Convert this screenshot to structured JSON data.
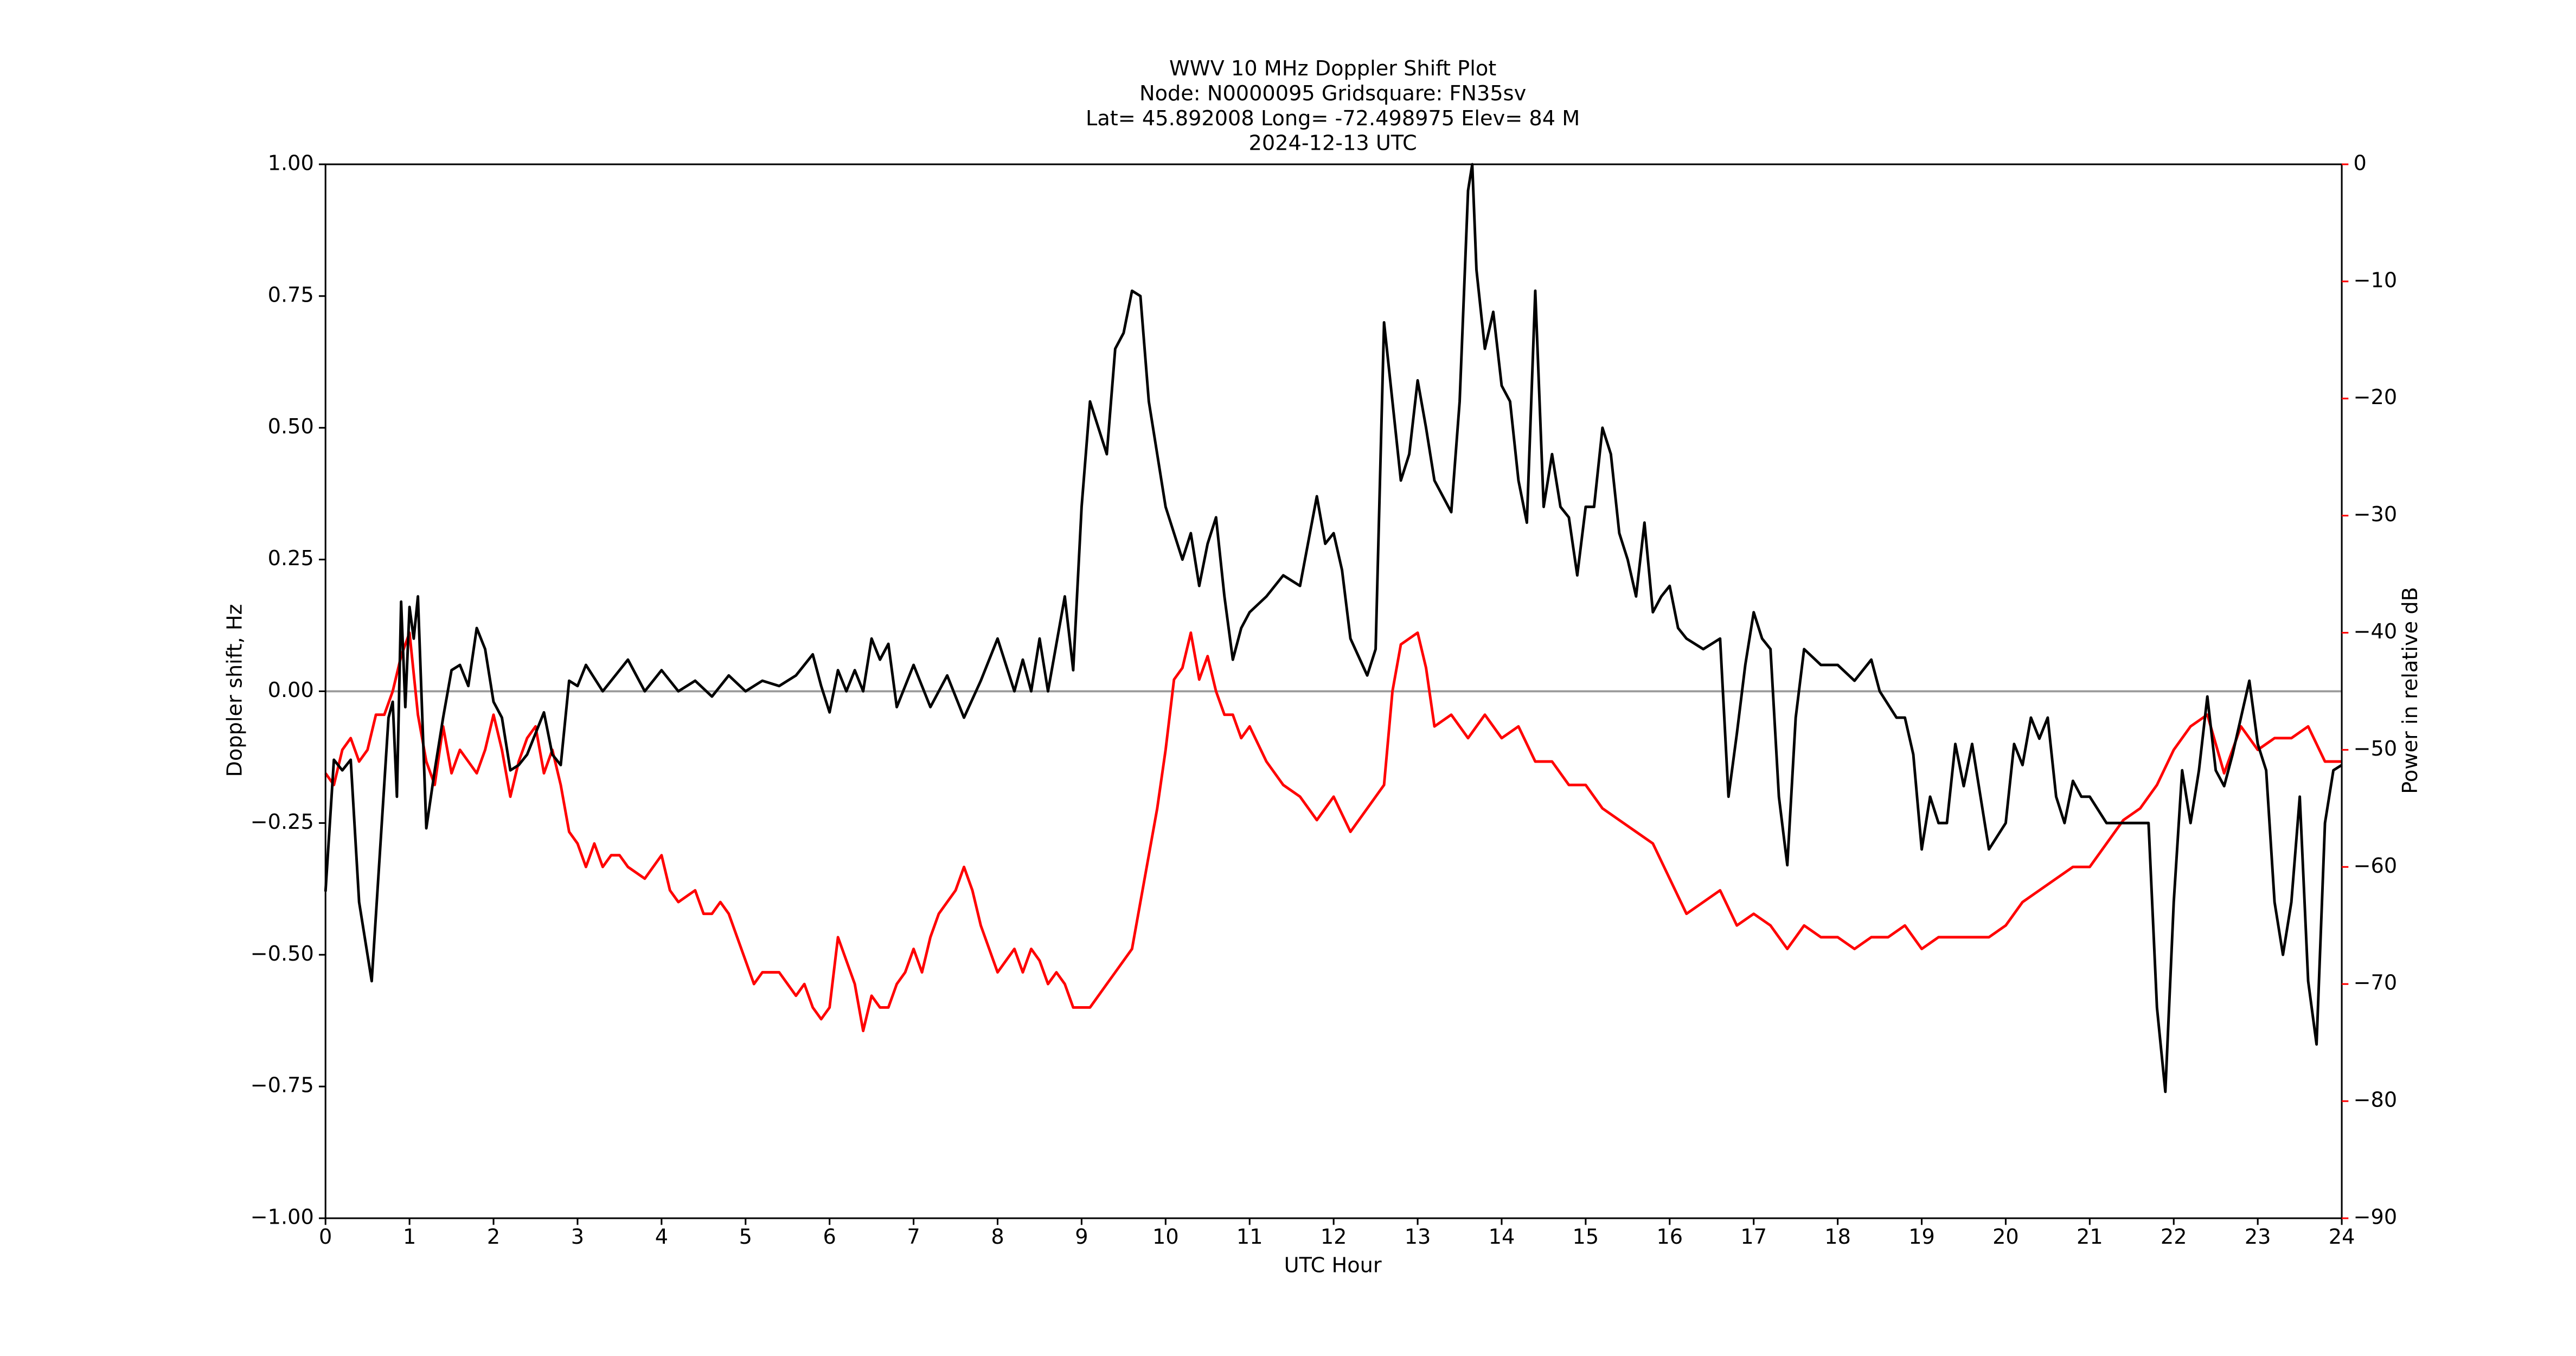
{
  "chart_data": {
    "type": "line",
    "title": [
      "WWV 10 MHz Doppler Shift Plot",
      "Node:  N0000095     Gridsquare:  FN35sv",
      "Lat= 45.892008    Long= -72.498975    Elev= 84 M",
      "2024-12-13  UTC"
    ],
    "x_label": "UTC Hour",
    "y_label": "Doppler shift, Hz",
    "y2_label": "Power in relative dB",
    "y2_color": "#ff0000",
    "xlim": [
      0,
      24
    ],
    "xticks": [
      0,
      1,
      2,
      3,
      4,
      5,
      6,
      7,
      8,
      9,
      10,
      11,
      12,
      13,
      14,
      15,
      16,
      17,
      18,
      19,
      20,
      21,
      22,
      23,
      24
    ],
    "ylim": [
      -1,
      1
    ],
    "yticks": [
      {
        "value": -1,
        "label": "−1.00"
      },
      {
        "value": -0.75,
        "label": "−0.75"
      },
      {
        "value": -0.5,
        "label": "−0.50"
      },
      {
        "value": -0.25,
        "label": "−0.25"
      },
      {
        "value": 0,
        "label": "0.00"
      },
      {
        "value": 0.25,
        "label": "0.25"
      },
      {
        "value": 0.5,
        "label": "0.50"
      },
      {
        "value": 0.75,
        "label": "0.75"
      },
      {
        "value": 1,
        "label": "1.00"
      }
    ],
    "y2lim": [
      -90,
      0
    ],
    "y2ticks": [
      {
        "value": -90,
        "label": "−90"
      },
      {
        "value": -80,
        "label": "−80"
      },
      {
        "value": -70,
        "label": "−70"
      },
      {
        "value": -60,
        "label": "−60"
      },
      {
        "value": -50,
        "label": "−50"
      },
      {
        "value": -40,
        "label": "−40"
      },
      {
        "value": -30,
        "label": "−30"
      },
      {
        "value": -20,
        "label": "−20"
      },
      {
        "value": -10,
        "label": "−10"
      },
      0
    ],
    "axhline": {
      "value": 0,
      "color": "#999999"
    },
    "series": [
      {
        "color": "#000000",
        "x": [
          0,
          0.1,
          0.2,
          0.3,
          0.4,
          0.55,
          0.65,
          0.75,
          0.8,
          0.85,
          0.9,
          0.95,
          1,
          1.05,
          1.1,
          1.2,
          1.3,
          1.4,
          1.5,
          1.6,
          1.7,
          1.8,
          1.9,
          2,
          2.1,
          2.2,
          2.3,
          2.4,
          2.5,
          2.6,
          2.7,
          2.8,
          2.9,
          3,
          3.1,
          3.3,
          3.5,
          3.6,
          3.8,
          4,
          4.2,
          4.4,
          4.6,
          4.8,
          5,
          5.2,
          5.4,
          5.6,
          5.8,
          5.9,
          6,
          6.1,
          6.2,
          6.3,
          6.4,
          6.5,
          6.6,
          6.7,
          6.8,
          7,
          7.2,
          7.4,
          7.6,
          7.8,
          8,
          8.1,
          8.2,
          8.3,
          8.4,
          8.5,
          8.6,
          8.8,
          8.9,
          9,
          9.1,
          9.2,
          9.3,
          9.4,
          9.5,
          9.6,
          9.7,
          9.8,
          9.9,
          10,
          10.1,
          10.2,
          10.3,
          10.4,
          10.5,
          10.6,
          10.7,
          10.8,
          10.9,
          11,
          11.2,
          11.4,
          11.6,
          11.8,
          11.9,
          12,
          12.1,
          12.2,
          12.4,
          12.5,
          12.6,
          12.7,
          12.8,
          12.9,
          13,
          13.1,
          13.2,
          13.4,
          13.5,
          13.6,
          13.65,
          13.7,
          13.8,
          13.9,
          14,
          14.1,
          14.2,
          14.3,
          14.4,
          14.5,
          14.6,
          14.7,
          14.8,
          14.9,
          15,
          15.1,
          15.2,
          15.3,
          15.4,
          15.5,
          15.6,
          15.7,
          15.8,
          15.9,
          16,
          16.1,
          16.2,
          16.4,
          16.6,
          16.7,
          16.8,
          16.9,
          17,
          17.1,
          17.2,
          17.3,
          17.4,
          17.5,
          17.6,
          17.8,
          18,
          18.2,
          18.4,
          18.5,
          18.7,
          18.8,
          18.9,
          19,
          19.1,
          19.2,
          19.3,
          19.4,
          19.5,
          19.6,
          19.7,
          19.8,
          20,
          20.1,
          20.2,
          20.3,
          20.4,
          20.5,
          20.6,
          20.7,
          20.8,
          20.9,
          21,
          21.2,
          21.4,
          21.6,
          21.7,
          21.8,
          21.9,
          22,
          22.1,
          22.2,
          22.3,
          22.4,
          22.5,
          22.6,
          22.7,
          22.8,
          22.9,
          23,
          23.1,
          23.2,
          23.3,
          23.4,
          23.5,
          23.6,
          23.7,
          23.8,
          23.9,
          24
        ],
        "values": [
          -0.38,
          -0.13,
          -0.15,
          -0.13,
          -0.4,
          -0.55,
          -0.3,
          -0.05,
          -0.02,
          -0.2,
          0.17,
          -0.03,
          0.16,
          0.1,
          0.18,
          -0.26,
          -0.15,
          -0.05,
          0.04,
          0.05,
          0.01,
          0.12,
          0.08,
          -0.02,
          -0.05,
          -0.15,
          -0.14,
          -0.12,
          -0.08,
          -0.04,
          -0.12,
          -0.14,
          0.02,
          0.01,
          0.05,
          0,
          0.04,
          0.06,
          0,
          0.04,
          0,
          0.02,
          -0.01,
          0.03,
          0,
          0.02,
          0.01,
          0.03,
          0.07,
          0.01,
          -0.04,
          0.04,
          0,
          0.04,
          0,
          0.1,
          0.06,
          0.09,
          -0.03,
          0.05,
          -0.03,
          0.03,
          -0.05,
          0.02,
          0.1,
          0.05,
          0,
          0.06,
          0,
          0.1,
          0,
          0.18,
          0.04,
          0.35,
          0.55,
          0.5,
          0.45,
          0.65,
          0.68,
          0.76,
          0.75,
          0.55,
          0.45,
          0.35,
          0.3,
          0.25,
          0.3,
          0.2,
          0.28,
          0.33,
          0.18,
          0.06,
          0.12,
          0.15,
          0.18,
          0.22,
          0.2,
          0.37,
          0.28,
          0.3,
          0.23,
          0.1,
          0.03,
          0.08,
          0.7,
          0.55,
          0.4,
          0.45,
          0.59,
          0.5,
          0.4,
          0.34,
          0.55,
          0.95,
          1,
          0.8,
          0.65,
          0.72,
          0.58,
          0.55,
          0.4,
          0.32,
          0.76,
          0.35,
          0.45,
          0.35,
          0.33,
          0.22,
          0.35,
          0.35,
          0.5,
          0.45,
          0.3,
          0.25,
          0.18,
          0.32,
          0.15,
          0.18,
          0.2,
          0.12,
          0.1,
          0.08,
          0.1,
          -0.2,
          -0.08,
          0.05,
          0.15,
          0.1,
          0.08,
          -0.2,
          -0.33,
          -0.05,
          0.08,
          0.05,
          0.05,
          0.02,
          0.06,
          0,
          -0.05,
          -0.05,
          -0.12,
          -0.3,
          -0.2,
          -0.25,
          -0.25,
          -0.1,
          -0.18,
          -0.1,
          -0.2,
          -0.3,
          -0.25,
          -0.1,
          -0.14,
          -0.05,
          -0.09,
          -0.05,
          -0.2,
          -0.25,
          -0.17,
          -0.2,
          -0.2,
          -0.25,
          -0.25,
          -0.25,
          -0.25,
          -0.6,
          -0.76,
          -0.4,
          -0.15,
          -0.25,
          -0.15,
          -0.01,
          -0.15,
          -0.18,
          -0.12,
          -0.05,
          0.02,
          -0.1,
          -0.15,
          -0.4,
          -0.5,
          -0.4,
          -0.2,
          -0.55,
          -0.67,
          -0.25,
          -0.15,
          -0.14
        ]
      },
      {
        "color": "#ff0000",
        "axis": "y2",
        "x": [
          0,
          0.1,
          0.2,
          0.3,
          0.4,
          0.5,
          0.6,
          0.7,
          0.8,
          0.9,
          1,
          1.1,
          1.2,
          1.3,
          1.4,
          1.5,
          1.6,
          1.7,
          1.8,
          1.9,
          2,
          2.1,
          2.2,
          2.3,
          2.4,
          2.5,
          2.6,
          2.7,
          2.8,
          2.9,
          3,
          3.1,
          3.2,
          3.3,
          3.4,
          3.5,
          3.6,
          3.8,
          4,
          4.1,
          4.2,
          4.4,
          4.5,
          4.6,
          4.7,
          4.8,
          4.9,
          5,
          5.1,
          5.2,
          5.4,
          5.5,
          5.6,
          5.7,
          5.8,
          5.9,
          6,
          6.1,
          6.2,
          6.3,
          6.4,
          6.5,
          6.6,
          6.7,
          6.8,
          6.9,
          7,
          7.1,
          7.2,
          7.3,
          7.4,
          7.5,
          7.6,
          7.7,
          7.8,
          7.9,
          8,
          8.1,
          8.2,
          8.3,
          8.4,
          8.5,
          8.6,
          8.7,
          8.8,
          8.9,
          9,
          9.1,
          9.2,
          9.3,
          9.4,
          9.5,
          9.6,
          9.7,
          9.8,
          9.9,
          10,
          10.1,
          10.2,
          10.3,
          10.4,
          10.5,
          10.6,
          10.7,
          10.8,
          10.9,
          11,
          11.2,
          11.4,
          11.6,
          11.8,
          12,
          12.2,
          12.4,
          12.6,
          12.7,
          12.8,
          13,
          13.1,
          13.2,
          13.4,
          13.6,
          13.8,
          14,
          14.2,
          14.4,
          14.6,
          14.8,
          15,
          15.2,
          15.4,
          15.6,
          15.8,
          16,
          16.2,
          16.4,
          16.6,
          16.8,
          17,
          17.2,
          17.4,
          17.6,
          17.8,
          18,
          18.2,
          18.4,
          18.6,
          18.8,
          19,
          19.2,
          19.4,
          19.6,
          19.8,
          20,
          20.2,
          20.4,
          20.6,
          20.8,
          21,
          21.2,
          21.4,
          21.6,
          21.8,
          22,
          22.2,
          22.4,
          22.6,
          22.8,
          23,
          23.2,
          23.4,
          23.6,
          23.8,
          24
        ],
        "values": [
          -52,
          -53,
          -50,
          -49,
          -51,
          -50,
          -47,
          -47,
          -45,
          -42,
          -40,
          -47,
          -51,
          -53,
          -48,
          -52,
          -50,
          -51,
          -52,
          -50,
          -47,
          -50,
          -54,
          -51,
          -49,
          -48,
          -52,
          -50,
          -53,
          -57,
          -58,
          -60,
          -58,
          -60,
          -59,
          -59,
          -60,
          -61,
          -59,
          -62,
          -63,
          -62,
          -64,
          -64,
          -63,
          -64,
          -66,
          -68,
          -70,
          -69,
          -69,
          -70,
          -71,
          -70,
          -72,
          -73,
          -72,
          -66,
          -68,
          -70,
          -74,
          -71,
          -72,
          -72,
          -70,
          -69,
          -67,
          -69,
          -66,
          -64,
          -63,
          -62,
          -60,
          -62,
          -65,
          -67,
          -69,
          -68,
          -67,
          -69,
          -67,
          -68,
          -70,
          -69,
          -70,
          -72,
          -72,
          -72,
          -71,
          -70,
          -69,
          -68,
          -67,
          -63,
          -59,
          -55,
          -50,
          -44,
          -43,
          -40,
          -44,
          -42,
          -45,
          -47,
          -47,
          -49,
          -48,
          -51,
          -53,
          -54,
          -56,
          -54,
          -57,
          -55,
          -53,
          -45,
          -41,
          -40,
          -43,
          -48,
          -47,
          -49,
          -47,
          -49,
          -48,
          -51,
          -51,
          -53,
          -53,
          -55,
          -56,
          -57,
          -58,
          -61,
          -64,
          -63,
          -62,
          -65,
          -64,
          -65,
          -67,
          -65,
          -66,
          -66,
          -67,
          -66,
          -66,
          -65,
          -67,
          -66,
          -66,
          -66,
          -66,
          -65,
          -63,
          -62,
          -61,
          -60,
          -60,
          -58,
          -56,
          -55,
          -53,
          -50,
          -48,
          -47,
          -52,
          -48,
          -50,
          -49,
          -49,
          -48,
          -51,
          -51
        ]
      }
    ]
  }
}
